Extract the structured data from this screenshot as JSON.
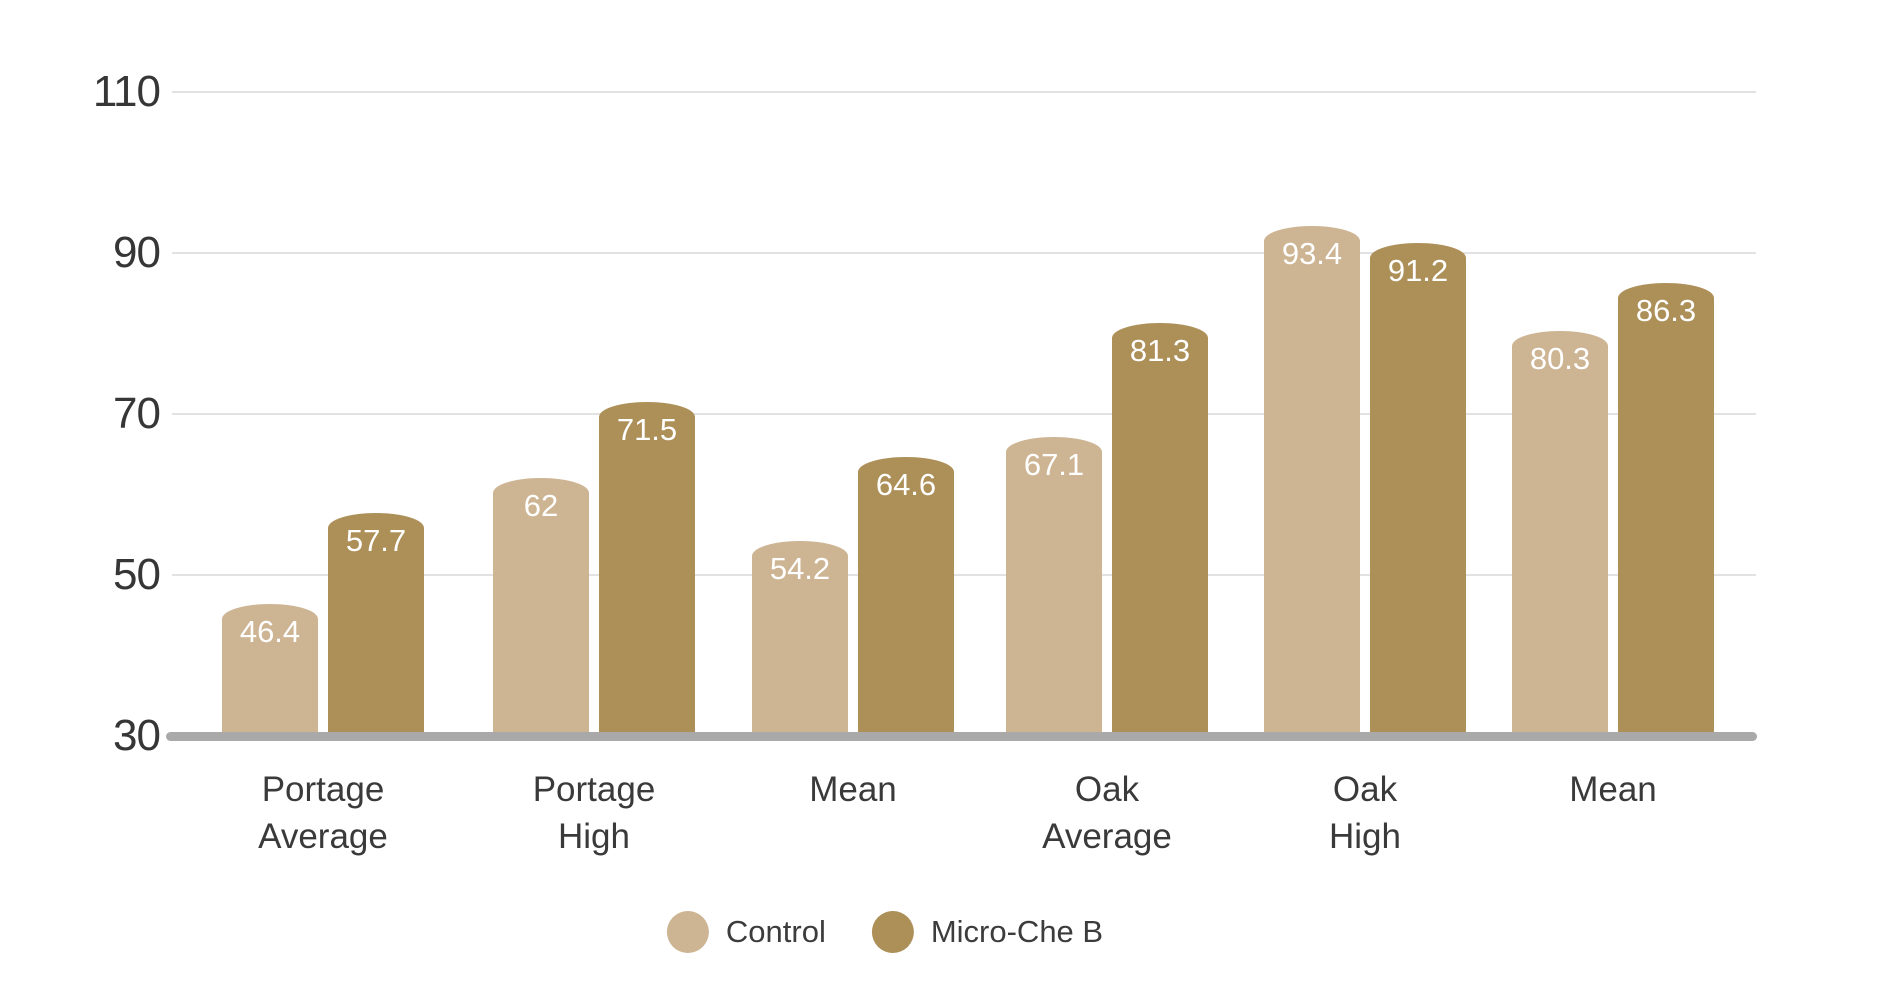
{
  "chart_data": {
    "type": "bar",
    "title": "",
    "categories": [
      "Portage Average",
      "Portage High",
      "Mean",
      "Oak Average",
      "Oak High",
      "Mean"
    ],
    "series": [
      {
        "name": "Control",
        "color": "#cdb493",
        "values": [
          46.4,
          62,
          54.2,
          67.1,
          93.4,
          80.3
        ],
        "labels": [
          "46.4",
          "62",
          "54.2",
          "67.1",
          "93.4",
          "80.3"
        ]
      },
      {
        "name": "Micro-Che B",
        "color": "#ad8f58",
        "values": [
          57.7,
          71.5,
          64.6,
          81.3,
          91.2,
          86.3
        ],
        "labels": [
          "57.7",
          "71.5",
          "64.6",
          "81.3",
          "91.2",
          "86.3"
        ]
      }
    ],
    "ylim": [
      30,
      110
    ],
    "yticks": [
      30,
      50,
      70,
      90,
      110
    ],
    "ytick_labels": [
      "30",
      "50",
      "70",
      "90",
      "110"
    ],
    "grid": true,
    "legend_position": "bottom",
    "value_label_color": "#ffffff"
  },
  "legend": {
    "items": [
      {
        "label": "Control",
        "color": "#cdb493"
      },
      {
        "label": "Micro-Che B",
        "color": "#ad8f58"
      }
    ]
  },
  "colors": {
    "axis_text": "#363636",
    "gridline": "#e2e2e2",
    "baseline": "#a9a9a9",
    "background": "#ffffff",
    "series_control": "#cdb493",
    "series_micro_che_b": "#ad8f58"
  }
}
